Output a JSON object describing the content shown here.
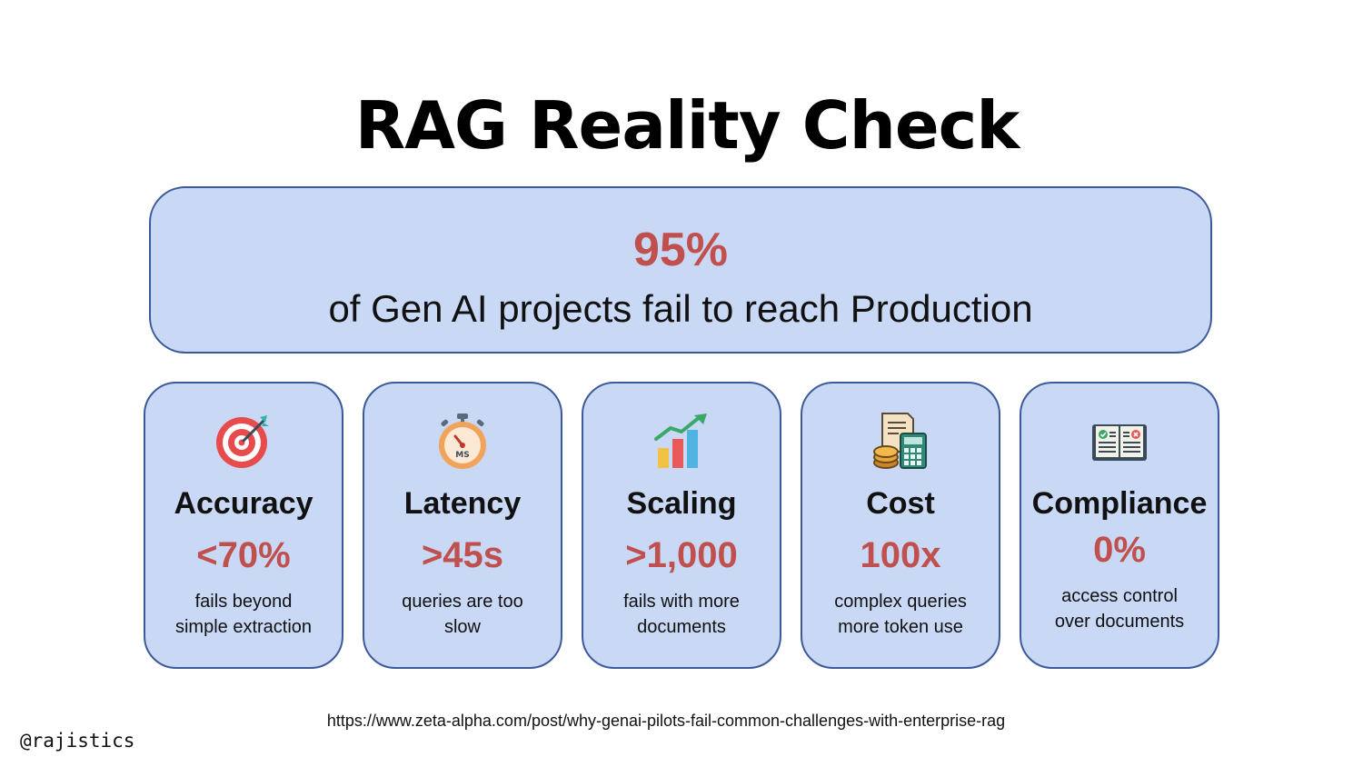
{
  "slide": {
    "title": "RAG Reality Check",
    "hero": {
      "stat": "95%",
      "description": "of Gen AI projects fail to reach Production"
    },
    "cards": [
      {
        "name": "Accuracy",
        "stat": "<70%",
        "line1": "fails beyond",
        "line2": "simple extraction",
        "icon": "target-icon"
      },
      {
        "name": "Latency",
        "stat": ">45s",
        "line1": "queries are too",
        "line2": "slow",
        "icon": "stopwatch-icon"
      },
      {
        "name": "Scaling",
        "stat": ">1,000",
        "line1": "fails with more",
        "line2": "documents",
        "icon": "growth-chart-icon"
      },
      {
        "name": "Cost",
        "stat": "100x",
        "line1": "complex queries",
        "line2": "more token use",
        "icon": "invoice-calculator-icon"
      },
      {
        "name": "Compliance",
        "stat": "0%",
        "line1": "access control",
        "line2": "over documents",
        "icon": "checklist-book-icon"
      }
    ],
    "source_url": "https://www.zeta-alpha.com/post/why-genai-pilots-fail-common-challenges-with-enterprise-rag",
    "handle": "@rajistics"
  },
  "colors": {
    "card_fill": "#c9d8f5",
    "card_border": "#3c5a9a",
    "stat_red": "#c0504d",
    "text": "#111111"
  }
}
